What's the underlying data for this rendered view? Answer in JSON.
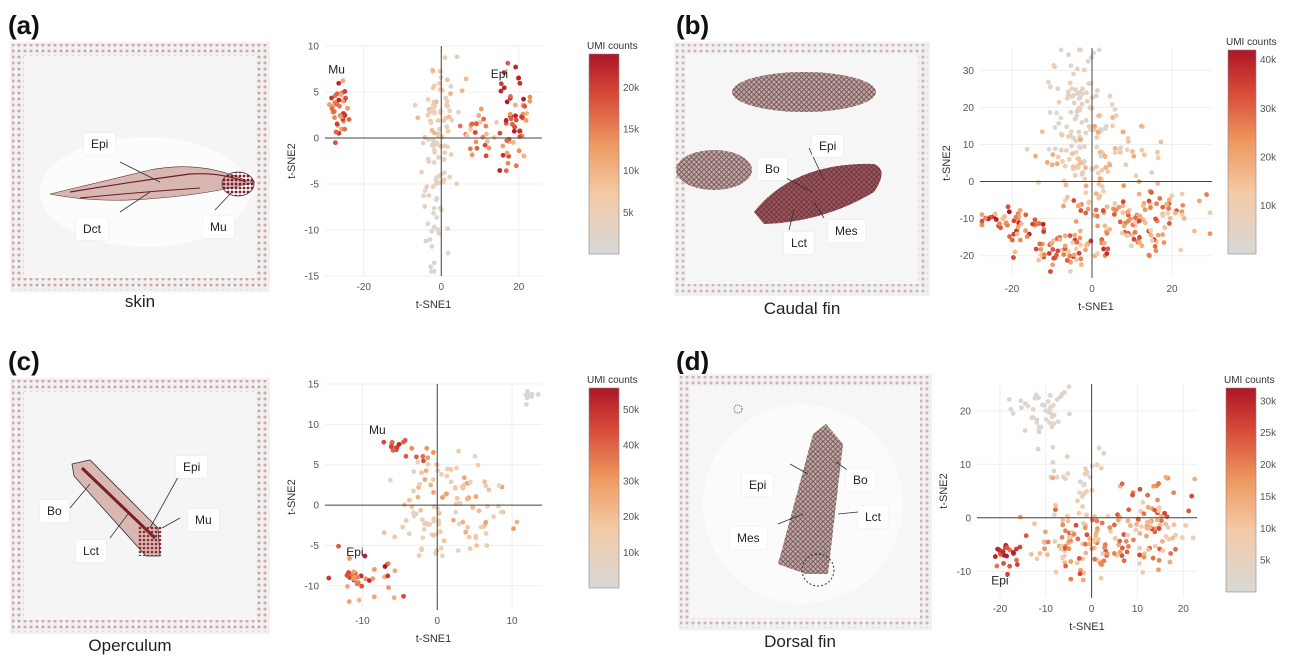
{
  "panels": [
    {
      "letter": "(a)",
      "caption": "skin",
      "callouts": [
        "Epi",
        "Dct",
        "Mu"
      ],
      "chart_data": {
        "type": "scatter",
        "xlabel": "t-SNE1",
        "ylabel": "t-SNE2",
        "xlim": [
          -30,
          26
        ],
        "ylim": [
          -15,
          10
        ],
        "xticks": [
          -20,
          0,
          20
        ],
        "yticks": [
          10,
          5,
          0,
          -5,
          -10,
          -15
        ],
        "colorbar": {
          "title": "UMI counts",
          "ticks": [
            "20k",
            "15k",
            "10k",
            "5k"
          ],
          "tick_values": [
            20000,
            15000,
            10000,
            5000
          ],
          "range": [
            0,
            24000
          ]
        },
        "annotations": [
          {
            "text": "Mu",
            "x": -27,
            "y": 7
          },
          {
            "text": "Epi",
            "x": 15,
            "y": 6.5
          }
        ],
        "clusters": [
          {
            "cx": -26.5,
            "cy": 3.3,
            "sx": 1.3,
            "sy": 1.4,
            "n": 38,
            "umi": [
              11000,
              23000
            ]
          },
          {
            "cx": -1,
            "cy": 3.5,
            "sx": 3.2,
            "sy": 2.3,
            "n": 55,
            "umi": [
              2000,
              10000
            ]
          },
          {
            "cx": -1.5,
            "cy": -3.5,
            "sx": 2.2,
            "sy": 2.6,
            "n": 40,
            "umi": [
              500,
              6000
            ]
          },
          {
            "cx": -1.5,
            "cy": -10.5,
            "sx": 1.2,
            "sy": 2.4,
            "n": 20,
            "umi": [
              0,
              2500
            ]
          },
          {
            "cx": 19,
            "cy": 1.5,
            "sx": 2.0,
            "sy": 2.8,
            "n": 55,
            "umi": [
              9000,
              24000
            ]
          },
          {
            "cx": 10,
            "cy": 0.5,
            "sx": 3.0,
            "sy": 1.4,
            "n": 25,
            "umi": [
              6000,
              20000
            ]
          }
        ]
      }
    },
    {
      "letter": "(b)",
      "caption": "Caudal fin",
      "callouts": [
        "Epi",
        "Bo",
        "Mes",
        "Lct"
      ],
      "chart_data": {
        "type": "scatter",
        "xlabel": "t-SNE1",
        "ylabel": "t-SNE2",
        "xlim": [
          -28,
          30
        ],
        "ylim": [
          -26,
          36
        ],
        "xticks": [
          -20,
          0,
          20
        ],
        "yticks": [
          30,
          20,
          10,
          0,
          -10,
          -20
        ],
        "colorbar": {
          "title": "UMI counts",
          "ticks": [
            "40k",
            "30k",
            "20k",
            "10k"
          ],
          "tick_values": [
            40000,
            30000,
            20000,
            10000
          ],
          "range": [
            0,
            42000
          ]
        },
        "annotations": [],
        "clusters": [
          {
            "cx": -4,
            "cy": 20,
            "sx": 3.5,
            "sy": 8.0,
            "n": 90,
            "umi": [
              0,
              10000
            ]
          },
          {
            "cx": 2,
            "cy": 6,
            "sx": 7.0,
            "sy": 4.5,
            "n": 90,
            "umi": [
              3000,
              20000
            ]
          },
          {
            "cx": 10,
            "cy": -10,
            "sx": 9.0,
            "sy": 4.5,
            "n": 120,
            "umi": [
              8000,
              34000
            ]
          },
          {
            "cx": -20,
            "cy": -11,
            "sx": 4.5,
            "sy": 2.5,
            "n": 45,
            "umi": [
              14000,
              42000
            ]
          },
          {
            "cx": -5,
            "cy": -18,
            "sx": 6.0,
            "sy": 3.0,
            "n": 70,
            "umi": [
              10000,
              38000
            ]
          }
        ]
      }
    },
    {
      "letter": "(c)",
      "caption": "Operculum",
      "callouts": [
        "Epi",
        "Bo",
        "Mu",
        "Lct"
      ],
      "chart_data": {
        "type": "scatter",
        "xlabel": "t-SNE1",
        "ylabel": "t-SNE2",
        "xlim": [
          -15,
          14
        ],
        "ylim": [
          -13,
          15
        ],
        "xticks": [
          -10,
          0,
          10
        ],
        "yticks": [
          15,
          10,
          5,
          0,
          -5,
          -10
        ],
        "colorbar": {
          "title": "UMI counts",
          "ticks": [
            "50k",
            "40k",
            "30k",
            "20k",
            "10k"
          ],
          "tick_values": [
            50000,
            40000,
            30000,
            20000,
            10000
          ],
          "range": [
            0,
            56000
          ]
        },
        "annotations": [
          {
            "text": "Mu",
            "x": -8,
            "y": 8.8
          },
          {
            "text": "Epi",
            "x": -11,
            "y": -6.3
          }
        ],
        "clusters": [
          {
            "cx": -5.5,
            "cy": 7.3,
            "sx": 0.7,
            "sy": 0.5,
            "n": 12,
            "umi": [
              35000,
              56000
            ]
          },
          {
            "cx": -2.2,
            "cy": 6.5,
            "sx": 1.0,
            "sy": 0.6,
            "n": 8,
            "umi": [
              30000,
              50000
            ]
          },
          {
            "cx": 1.5,
            "cy": 2.5,
            "sx": 3.2,
            "sy": 2.3,
            "n": 50,
            "umi": [
              5000,
              30000
            ]
          },
          {
            "cx": -1,
            "cy": -2,
            "sx": 2.5,
            "sy": 2.0,
            "n": 40,
            "umi": [
              3000,
              20000
            ]
          },
          {
            "cx": 5,
            "cy": -2,
            "sx": 1.8,
            "sy": 2.2,
            "n": 25,
            "umi": [
              8000,
              28000
            ]
          },
          {
            "cx": -9.5,
            "cy": -9,
            "sx": 2.3,
            "sy": 1.4,
            "n": 35,
            "umi": [
              20000,
              56000
            ]
          },
          {
            "cx": 12,
            "cy": 13,
            "sx": 0.7,
            "sy": 0.6,
            "n": 8,
            "umi": [
              0,
              3000
            ]
          }
        ]
      }
    },
    {
      "letter": "(d)",
      "caption": "Dorsal  fin",
      "callouts": [
        "Epi",
        "Bo",
        "Mes",
        "Lct"
      ],
      "chart_data": {
        "type": "scatter",
        "xlabel": "t-SNE1",
        "ylabel": "t-SNE2",
        "xlim": [
          -25,
          23
        ],
        "ylim": [
          -15,
          25
        ],
        "xticks": [
          -20,
          -10,
          0,
          10,
          20
        ],
        "yticks": [
          20,
          10,
          0,
          -10
        ],
        "colorbar": {
          "title": "UMI counts",
          "ticks": [
            "30k",
            "25k",
            "20k",
            "15k",
            "10k",
            "5k"
          ],
          "tick_values": [
            30000,
            25000,
            20000,
            15000,
            10000,
            5000
          ],
          "range": [
            0,
            32000
          ]
        },
        "annotations": [
          {
            "text": "Epi",
            "x": -20,
            "y": -12.5
          }
        ],
        "clusters": [
          {
            "cx": -10,
            "cy": 20,
            "sx": 3.5,
            "sy": 2.5,
            "n": 45,
            "umi": [
              0,
              4000
            ]
          },
          {
            "cx": -3,
            "cy": 8,
            "sx": 2.5,
            "sy": 4.5,
            "n": 30,
            "umi": [
              0,
              8000
            ]
          },
          {
            "cx": -2,
            "cy": -5,
            "sx": 6.5,
            "sy": 3.5,
            "n": 110,
            "umi": [
              5000,
              26000
            ]
          },
          {
            "cx": 13,
            "cy": -1,
            "sx": 4.5,
            "sy": 4.0,
            "n": 90,
            "umi": [
              6000,
              28000
            ]
          },
          {
            "cx": -18.5,
            "cy": -7,
            "sx": 1.5,
            "sy": 1.5,
            "n": 25,
            "umi": [
              20000,
              32000
            ]
          }
        ]
      }
    }
  ]
}
